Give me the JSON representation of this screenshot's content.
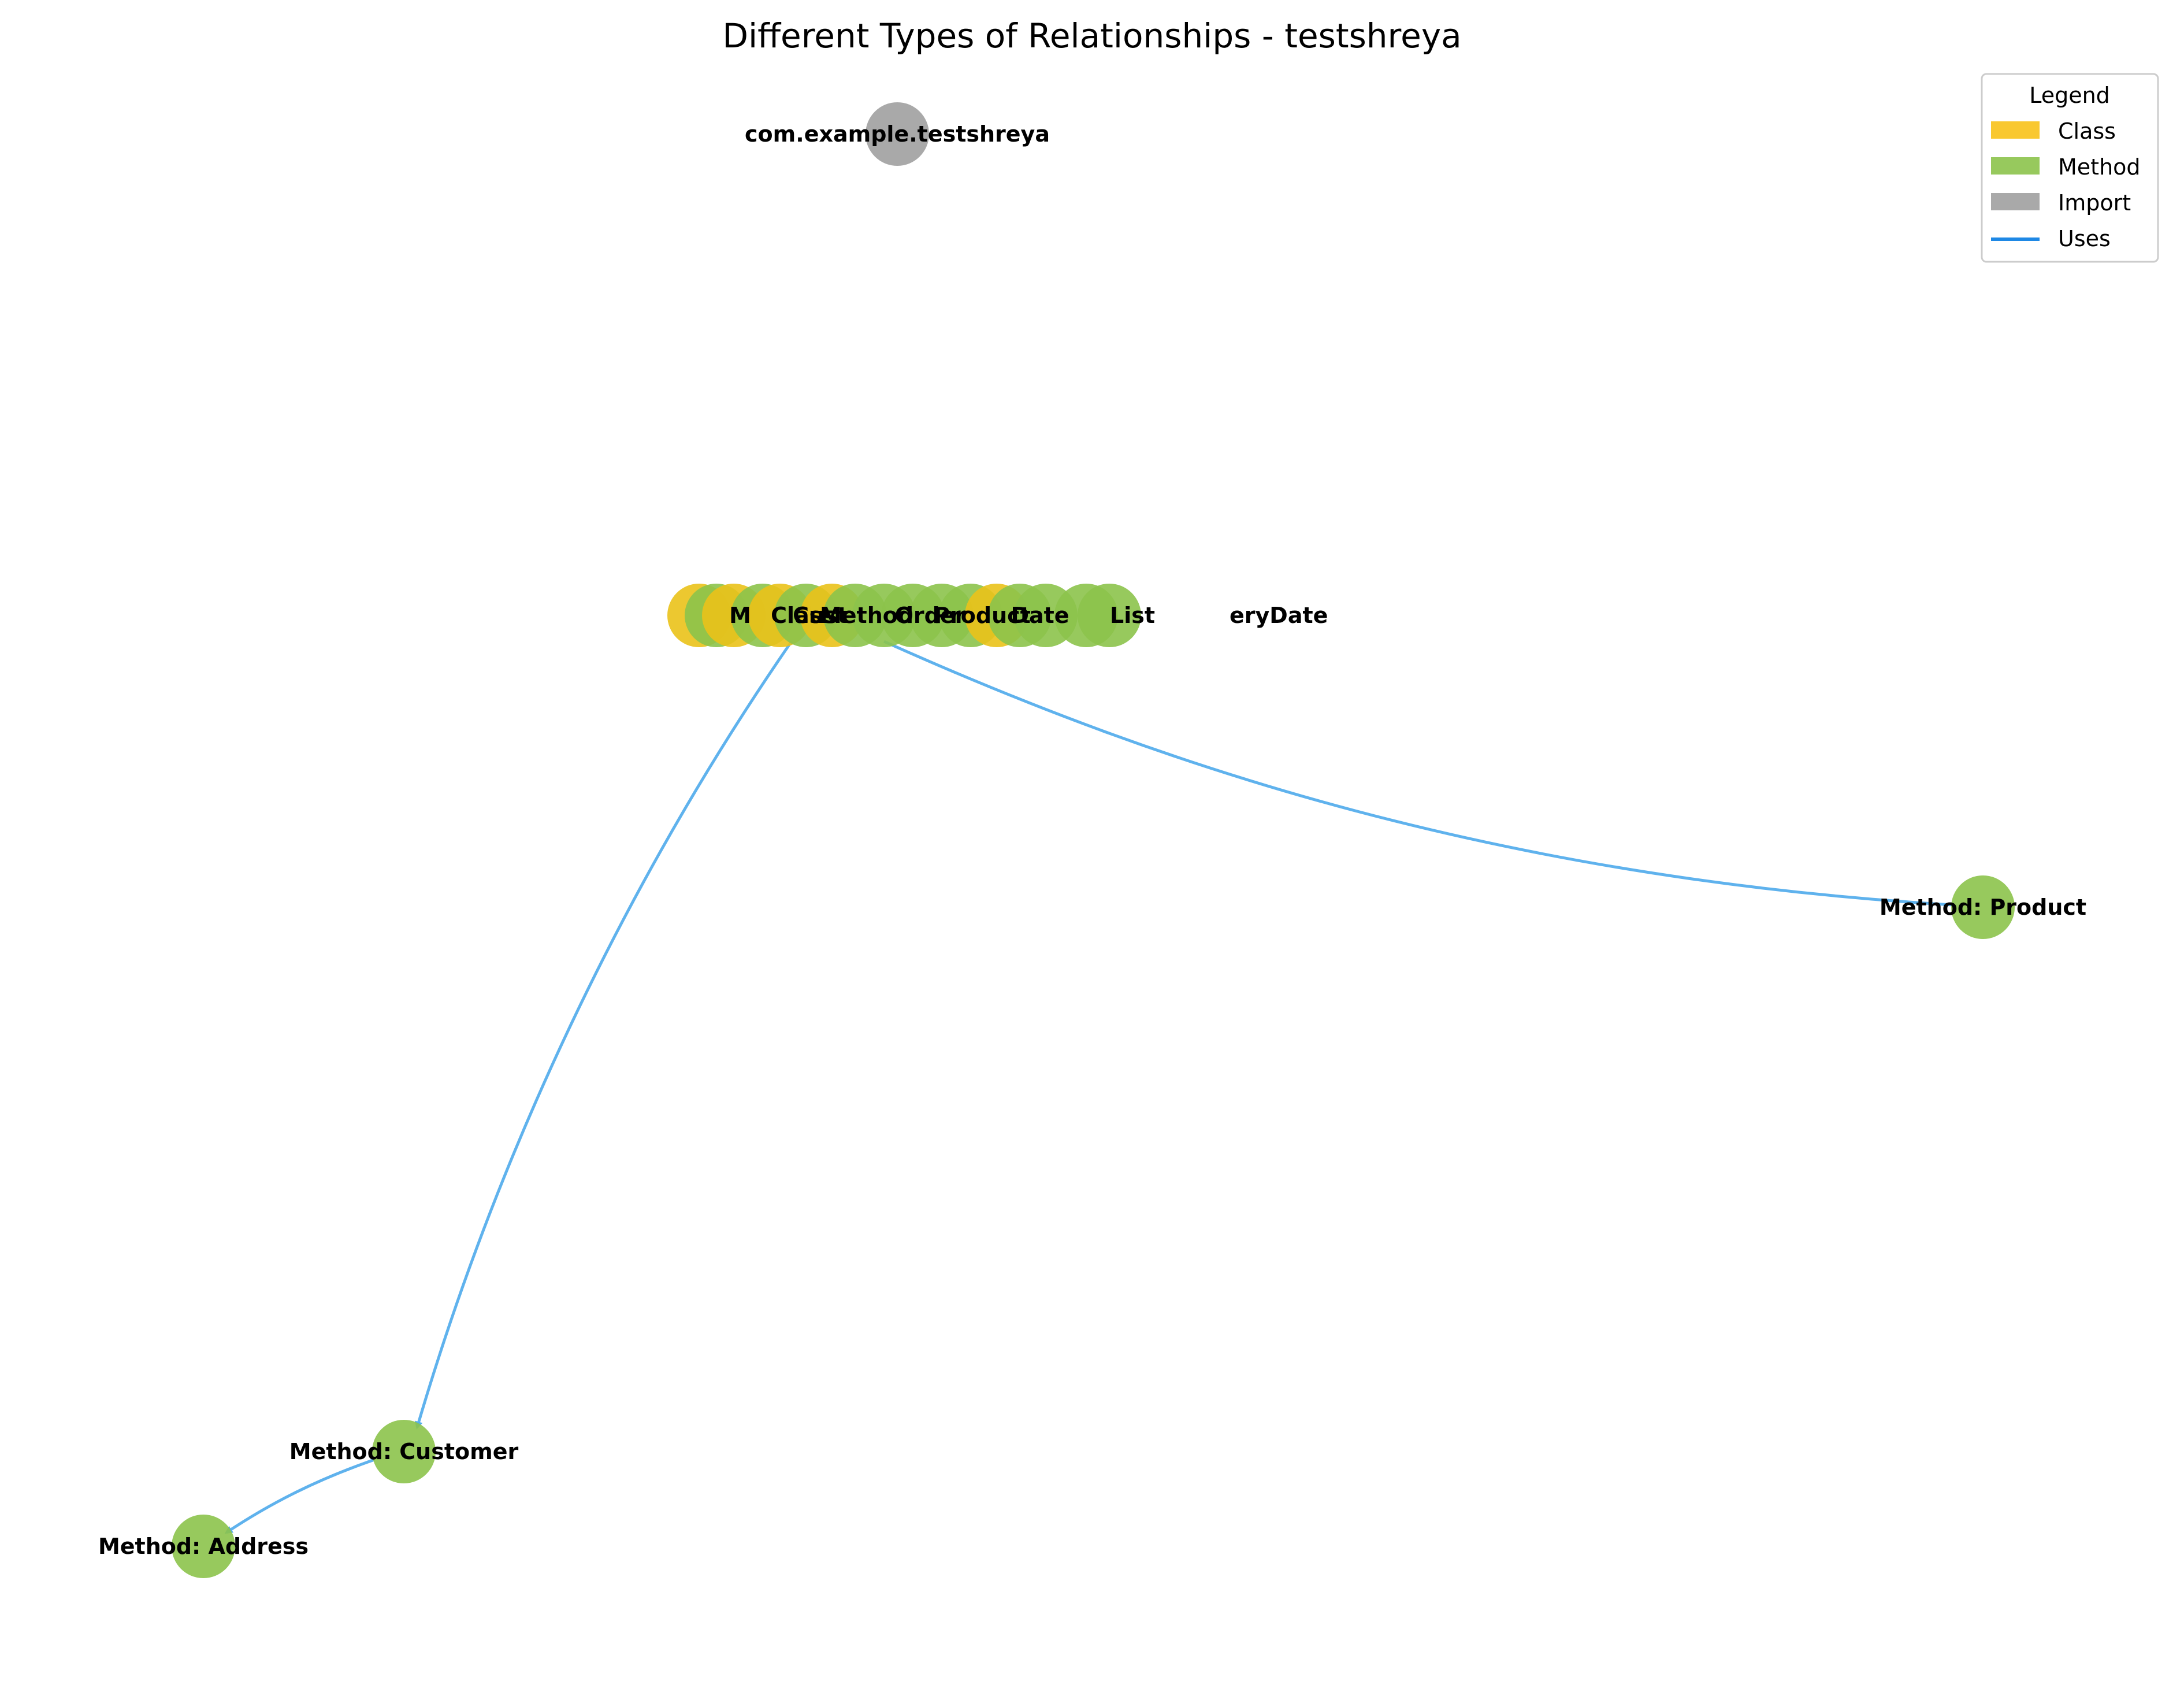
{
  "title": "Different Types of Relationships - testshreya",
  "colors": {
    "class": "#f8c21a",
    "method": "#8cc34b",
    "import": "#a0a0a0",
    "uses": "#56aeec",
    "cluster_class": "#eac21a",
    "cluster_method": "#8cc34b"
  },
  "legend": {
    "title": "Legend",
    "items": [
      {
        "label": "Class",
        "kind": "patch",
        "color": "#f8c21a"
      },
      {
        "label": "Method",
        "kind": "patch",
        "color": "#8cc34b"
      },
      {
        "label": "Import",
        "kind": "patch",
        "color": "#a0a0a0"
      },
      {
        "label": "Uses",
        "kind": "line",
        "color": "#1e88e5"
      }
    ]
  },
  "nodes": {
    "import_node": {
      "label": "com.example.testshreya",
      "type": "Import"
    },
    "product": {
      "label": "Method: Product",
      "type": "Method"
    },
    "customer": {
      "label": "Method: Customer",
      "type": "Method"
    },
    "address": {
      "label": "Method: Address",
      "type": "Method"
    },
    "cluster": {
      "label_left": "M",
      "label_right": "eryDate",
      "overlap_text_fragments": [
        "Class",
        "Cust",
        "Method",
        "Order",
        "Product",
        "Date",
        "List"
      ]
    }
  },
  "edges": [
    {
      "from": "cluster",
      "to": "product",
      "type": "Uses"
    },
    {
      "from": "cluster",
      "to": "customer",
      "type": "Uses"
    },
    {
      "from": "customer",
      "to": "address",
      "type": "Uses"
    }
  ]
}
